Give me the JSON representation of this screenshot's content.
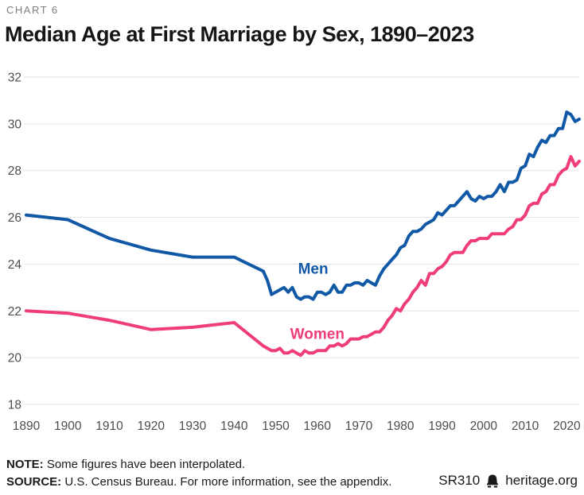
{
  "header": {
    "kicker": "CHART 6",
    "title": "Median Age at First Marriage by Sex, 1890–2023"
  },
  "chart_data": {
    "type": "line",
    "title": "Median Age at First Marriage by Sex, 1890–2023",
    "xlabel": "",
    "ylabel": "",
    "xlim": [
      1890,
      2023
    ],
    "ylim": [
      18,
      32
    ],
    "x_ticks": [
      1890,
      1900,
      1910,
      1920,
      1930,
      1940,
      1950,
      1960,
      1970,
      1980,
      1990,
      2000,
      2010,
      2020
    ],
    "y_ticks": [
      18,
      20,
      22,
      24,
      26,
      28,
      30,
      32
    ],
    "grid": "horizontal",
    "legend": "inline-labels",
    "series": [
      {
        "name": "Men",
        "color": "#1159a6",
        "label_pos": {
          "year": 1959,
          "value": 23.8
        },
        "points": [
          [
            1890,
            26.1
          ],
          [
            1900,
            25.9
          ],
          [
            1910,
            25.1
          ],
          [
            1920,
            24.6
          ],
          [
            1930,
            24.3
          ],
          [
            1940,
            24.3
          ],
          [
            1947,
            23.7
          ],
          [
            1948,
            23.3
          ],
          [
            1949,
            22.7
          ],
          [
            1950,
            22.8
          ],
          [
            1951,
            22.9
          ],
          [
            1952,
            23.0
          ],
          [
            1953,
            22.8
          ],
          [
            1954,
            23.0
          ],
          [
            1955,
            22.6
          ],
          [
            1956,
            22.5
          ],
          [
            1957,
            22.6
          ],
          [
            1958,
            22.6
          ],
          [
            1959,
            22.5
          ],
          [
            1960,
            22.8
          ],
          [
            1961,
            22.8
          ],
          [
            1962,
            22.7
          ],
          [
            1963,
            22.8
          ],
          [
            1964,
            23.1
          ],
          [
            1965,
            22.8
          ],
          [
            1966,
            22.8
          ],
          [
            1967,
            23.1
          ],
          [
            1968,
            23.1
          ],
          [
            1969,
            23.2
          ],
          [
            1970,
            23.2
          ],
          [
            1971,
            23.1
          ],
          [
            1972,
            23.3
          ],
          [
            1973,
            23.2
          ],
          [
            1974,
            23.1
          ],
          [
            1975,
            23.5
          ],
          [
            1976,
            23.8
          ],
          [
            1977,
            24.0
          ],
          [
            1978,
            24.2
          ],
          [
            1979,
            24.4
          ],
          [
            1980,
            24.7
          ],
          [
            1981,
            24.8
          ],
          [
            1982,
            25.2
          ],
          [
            1983,
            25.4
          ],
          [
            1984,
            25.4
          ],
          [
            1985,
            25.5
          ],
          [
            1986,
            25.7
          ],
          [
            1987,
            25.8
          ],
          [
            1988,
            25.9
          ],
          [
            1989,
            26.2
          ],
          [
            1990,
            26.1
          ],
          [
            1991,
            26.3
          ],
          [
            1992,
            26.5
          ],
          [
            1993,
            26.5
          ],
          [
            1994,
            26.7
          ],
          [
            1995,
            26.9
          ],
          [
            1996,
            27.1
          ],
          [
            1997,
            26.8
          ],
          [
            1998,
            26.7
          ],
          [
            1999,
            26.9
          ],
          [
            2000,
            26.8
          ],
          [
            2001,
            26.9
          ],
          [
            2002,
            26.9
          ],
          [
            2003,
            27.1
          ],
          [
            2004,
            27.4
          ],
          [
            2005,
            27.1
          ],
          [
            2006,
            27.5
          ],
          [
            2007,
            27.5
          ],
          [
            2008,
            27.6
          ],
          [
            2009,
            28.1
          ],
          [
            2010,
            28.2
          ],
          [
            2011,
            28.7
          ],
          [
            2012,
            28.6
          ],
          [
            2013,
            29.0
          ],
          [
            2014,
            29.3
          ],
          [
            2015,
            29.2
          ],
          [
            2016,
            29.5
          ],
          [
            2017,
            29.5
          ],
          [
            2018,
            29.8
          ],
          [
            2019,
            29.8
          ],
          [
            2020,
            30.5
          ],
          [
            2021,
            30.4
          ],
          [
            2022,
            30.1
          ],
          [
            2023,
            30.2
          ]
        ]
      },
      {
        "name": "Women",
        "color": "#ee3d77",
        "label_pos": {
          "year": 1960,
          "value": 21.0
        },
        "points": [
          [
            1890,
            22.0
          ],
          [
            1900,
            21.9
          ],
          [
            1910,
            21.6
          ],
          [
            1920,
            21.2
          ],
          [
            1930,
            21.3
          ],
          [
            1940,
            21.5
          ],
          [
            1947,
            20.5
          ],
          [
            1948,
            20.4
          ],
          [
            1949,
            20.3
          ],
          [
            1950,
            20.3
          ],
          [
            1951,
            20.4
          ],
          [
            1952,
            20.2
          ],
          [
            1953,
            20.2
          ],
          [
            1954,
            20.3
          ],
          [
            1955,
            20.2
          ],
          [
            1956,
            20.1
          ],
          [
            1957,
            20.3
          ],
          [
            1958,
            20.2
          ],
          [
            1959,
            20.2
          ],
          [
            1960,
            20.3
          ],
          [
            1961,
            20.3
          ],
          [
            1962,
            20.3
          ],
          [
            1963,
            20.5
          ],
          [
            1964,
            20.5
          ],
          [
            1965,
            20.6
          ],
          [
            1966,
            20.5
          ],
          [
            1967,
            20.6
          ],
          [
            1968,
            20.8
          ],
          [
            1969,
            20.8
          ],
          [
            1970,
            20.8
          ],
          [
            1971,
            20.9
          ],
          [
            1972,
            20.9
          ],
          [
            1973,
            21.0
          ],
          [
            1974,
            21.1
          ],
          [
            1975,
            21.1
          ],
          [
            1976,
            21.3
          ],
          [
            1977,
            21.6
          ],
          [
            1978,
            21.8
          ],
          [
            1979,
            22.1
          ],
          [
            1980,
            22.0
          ],
          [
            1981,
            22.3
          ],
          [
            1982,
            22.5
          ],
          [
            1983,
            22.8
          ],
          [
            1984,
            23.0
          ],
          [
            1985,
            23.3
          ],
          [
            1986,
            23.1
          ],
          [
            1987,
            23.6
          ],
          [
            1988,
            23.6
          ],
          [
            1989,
            23.8
          ],
          [
            1990,
            23.9
          ],
          [
            1991,
            24.1
          ],
          [
            1992,
            24.4
          ],
          [
            1993,
            24.5
          ],
          [
            1994,
            24.5
          ],
          [
            1995,
            24.5
          ],
          [
            1996,
            24.8
          ],
          [
            1997,
            25.0
          ],
          [
            1998,
            25.0
          ],
          [
            1999,
            25.1
          ],
          [
            2000,
            25.1
          ],
          [
            2001,
            25.1
          ],
          [
            2002,
            25.3
          ],
          [
            2003,
            25.3
          ],
          [
            2004,
            25.3
          ],
          [
            2005,
            25.3
          ],
          [
            2006,
            25.5
          ],
          [
            2007,
            25.6
          ],
          [
            2008,
            25.9
          ],
          [
            2009,
            25.9
          ],
          [
            2010,
            26.1
          ],
          [
            2011,
            26.5
          ],
          [
            2012,
            26.6
          ],
          [
            2013,
            26.6
          ],
          [
            2014,
            27.0
          ],
          [
            2015,
            27.1
          ],
          [
            2016,
            27.4
          ],
          [
            2017,
            27.4
          ],
          [
            2018,
            27.8
          ],
          [
            2019,
            28.0
          ],
          [
            2020,
            28.1
          ],
          [
            2021,
            28.6
          ],
          [
            2022,
            28.2
          ],
          [
            2023,
            28.4
          ]
        ]
      }
    ]
  },
  "footer": {
    "note_label": "NOTE:",
    "note_text": " Some figures have been interpolated.",
    "source_label": "SOURCE:",
    "source_text": " U.S. Census Bureau. For more information, see the appendix.",
    "report_id": "SR310",
    "brand": "heritage.org"
  },
  "colors": {
    "men_line": "#1159a6",
    "women_line": "#ee3d77",
    "grid": "#e3e3e3",
    "axis_text": "#4d4d4d",
    "kicker_text": "#7f7f7f",
    "title_text": "#161616"
  }
}
